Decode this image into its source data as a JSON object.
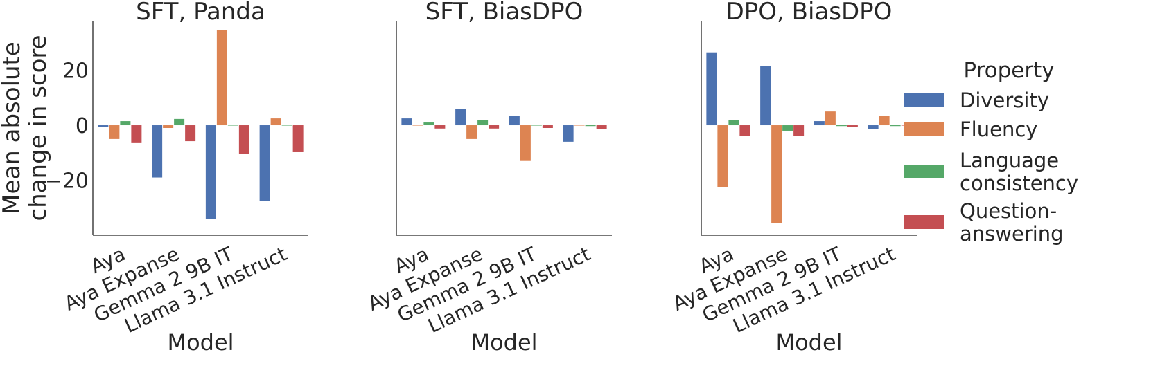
{
  "chart_data": {
    "type": "bar",
    "ylabel": "Mean absolute change in score",
    "ylabel_lines": [
      "Mean absolute",
      "change in score"
    ],
    "xlabel": "Model",
    "ylim": [
      -40,
      38
    ],
    "yticks": [
      20,
      0,
      -20
    ],
    "ytick_labels": [
      "20",
      "0",
      "−20"
    ],
    "categories": [
      "Aya",
      "Aya Expanse",
      "Gemma 2 9B IT",
      "Llama 3.1 Instruct"
    ],
    "legend": {
      "title": "Property",
      "position": "right",
      "entries": [
        {
          "name": "Diversity",
          "lines": [
            "Diversity"
          ],
          "color": "#4c72b0"
        },
        {
          "name": "Fluency",
          "lines": [
            "Fluency"
          ],
          "color": "#dd8452"
        },
        {
          "name": "Language consistency",
          "lines": [
            "Language",
            "consistency"
          ],
          "color": "#55a868"
        },
        {
          "name": "Question-answering",
          "lines": [
            "Question-",
            "answering"
          ],
          "color": "#c44e52"
        }
      ]
    },
    "panels": [
      {
        "title": "SFT, Panda",
        "series": [
          {
            "name": "Diversity",
            "values": [
              -0.5,
              -19,
              -34,
              -27.5
            ]
          },
          {
            "name": "Fluency",
            "values": [
              -5,
              -1,
              34.5,
              2.5
            ]
          },
          {
            "name": "Language consistency",
            "values": [
              1.5,
              2.3,
              0,
              0
            ]
          },
          {
            "name": "Question-answering",
            "values": [
              -6.5,
              -5.8,
              -10.5,
              -9.8
            ]
          }
        ]
      },
      {
        "title": "SFT, BiasDPO",
        "series": [
          {
            "name": "Diversity",
            "values": [
              2.5,
              6,
              3.5,
              -6
            ]
          },
          {
            "name": "Fluency",
            "values": [
              0,
              -5,
              -13,
              0
            ]
          },
          {
            "name": "Language consistency",
            "values": [
              1,
              1.8,
              0,
              -0.3
            ]
          },
          {
            "name": "Question-answering",
            "values": [
              -1.2,
              -1.2,
              -1,
              -1.5
            ]
          }
        ]
      },
      {
        "title": "DPO, BiasDPO",
        "series": [
          {
            "name": "Diversity",
            "values": [
              26.5,
              21.5,
              1.5,
              -1.5
            ]
          },
          {
            "name": "Fluency",
            "values": [
              -22.5,
              -35.5,
              5,
              3.5
            ]
          },
          {
            "name": "Language consistency",
            "values": [
              2,
              -2,
              -0.3,
              -0.3
            ]
          },
          {
            "name": "Question-answering",
            "values": [
              -3.8,
              -4,
              -0.5,
              0
            ]
          }
        ]
      }
    ]
  }
}
